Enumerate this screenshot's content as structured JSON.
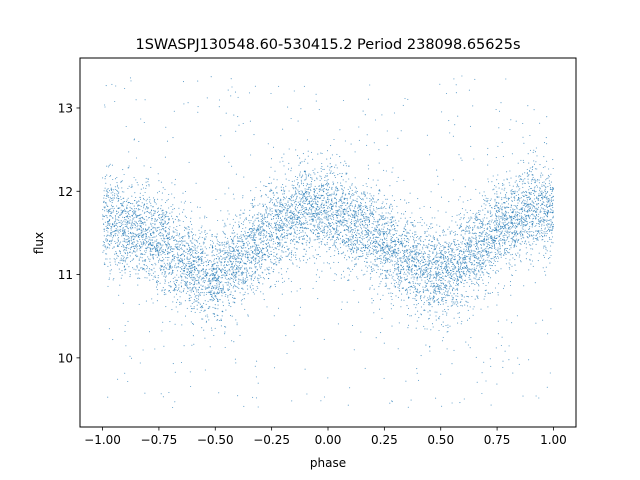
{
  "chart_data": {
    "type": "scatter",
    "title": "1SWASPJ130548.60-530415.2 Period 238098.65625s",
    "xlabel": "phase",
    "ylabel": "flux",
    "xlim": [
      -1.1,
      1.1
    ],
    "ylim": [
      9.17,
      13.6
    ],
    "x_ticks": [
      -1.0,
      -0.75,
      -0.5,
      -0.25,
      0.0,
      0.25,
      0.5,
      0.75,
      1.0
    ],
    "x_tick_labels": [
      "−1.00",
      "−0.75",
      "−0.50",
      "−0.25",
      "0.00",
      "0.25",
      "0.50",
      "0.75",
      "1.00"
    ],
    "y_ticks": [
      10,
      11,
      12,
      13
    ],
    "y_tick_labels": [
      "10",
      "11",
      "12",
      "13"
    ],
    "grid": false,
    "marker_color": "#1f77b4",
    "series": [
      {
        "x": [
          -1.0,
          -0.9,
          -0.8,
          -0.7,
          -0.6,
          -0.5,
          -0.4,
          -0.3,
          -0.2,
          -0.1,
          0.0,
          0.1,
          0.2,
          0.3,
          0.4,
          0.5,
          0.6,
          0.7,
          0.8,
          0.9,
          1.0
        ],
        "values": [
          11.65,
          11.6,
          11.5,
          11.3,
          11.1,
          10.98,
          11.15,
          11.4,
          11.65,
          11.8,
          11.75,
          11.6,
          11.5,
          11.3,
          11.1,
          10.98,
          11.15,
          11.4,
          11.65,
          11.8,
          11.75
        ],
        "scatter_sd": 0.28,
        "outlier_fraction": 0.06,
        "outlier_range": [
          9.4,
          13.4
        ]
      }
    ]
  }
}
